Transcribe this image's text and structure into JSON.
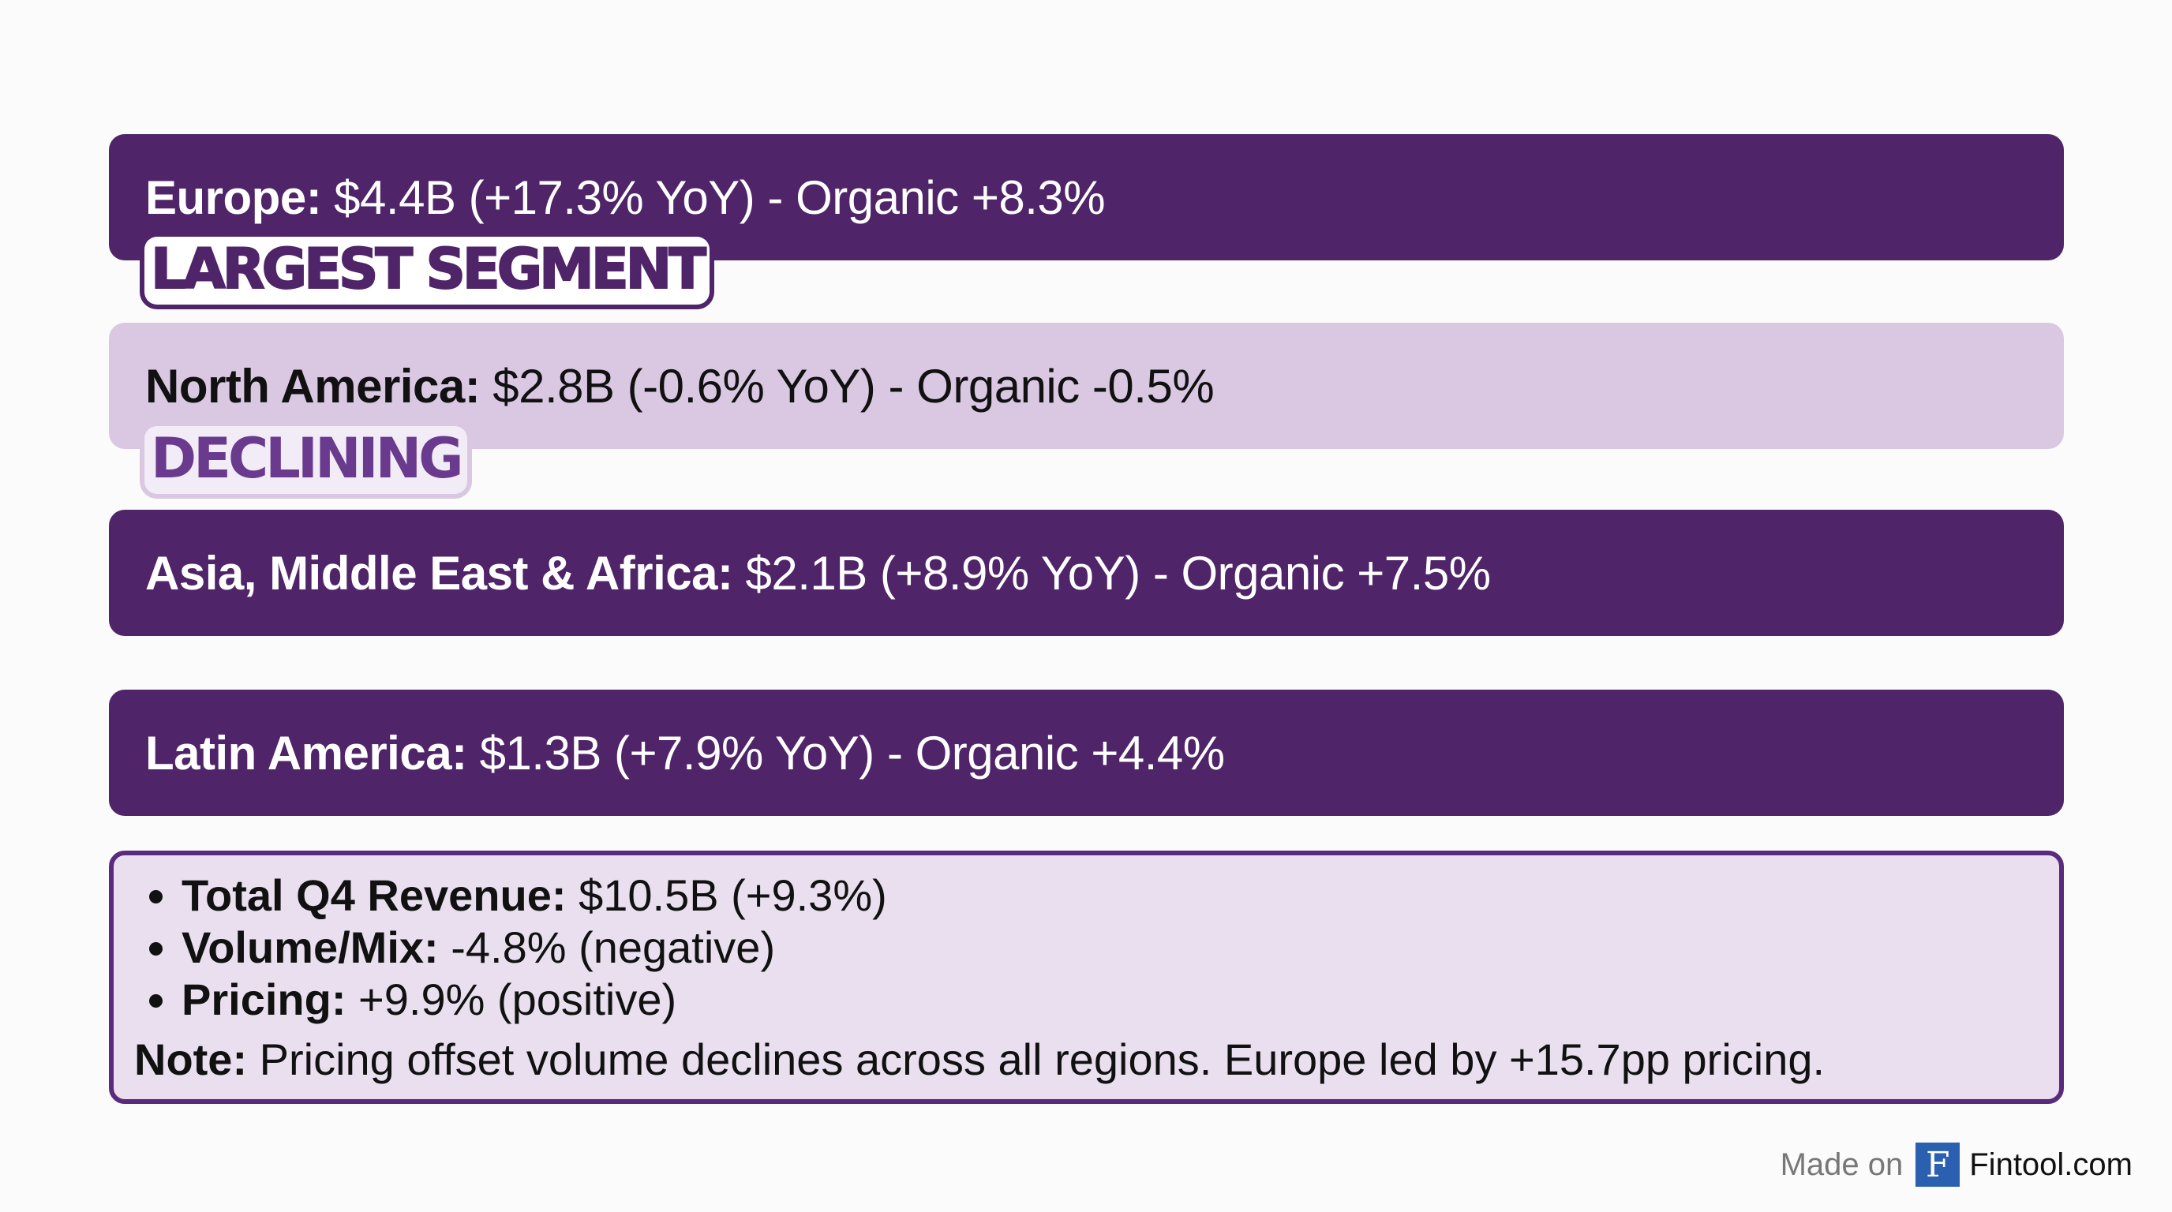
{
  "segments": [
    {
      "region": "Europe:",
      "detail": "$4.4B (+17.3% YoY) - Organic +8.3%",
      "badge": "LARGEST SEGMENT",
      "style": "dark"
    },
    {
      "region": "North America:",
      "detail": "$2.8B (-0.6% YoY) - Organic -0.5%",
      "badge": "DECLINING",
      "style": "light"
    },
    {
      "region": "Asia, Middle East & Africa:",
      "detail": "$2.1B (+8.9% YoY) - Organic +7.5%",
      "style": "dark"
    },
    {
      "region": "Latin America:",
      "detail": "$1.3B (+7.9% YoY) - Organic +4.4%",
      "style": "dark"
    }
  ],
  "summary": {
    "bullets": [
      {
        "label": "Total Q4 Revenue:",
        "value": "$10.5B (+9.3%)"
      },
      {
        "label": "Volume/Mix:",
        "value": "-4.8% (negative)"
      },
      {
        "label": "Pricing:",
        "value": "+9.9% (positive)"
      }
    ],
    "note_label": "Note:",
    "note_text": "Pricing offset volume declines across all regions. Europe led by +15.7pp pricing."
  },
  "footer": {
    "made_on": "Made on",
    "logo_letter": "F",
    "brand": "Fintool.com"
  },
  "colors": {
    "dark_purple": "#4f2468",
    "light_purple": "#dac8e3",
    "summary_bg": "#e9dfef",
    "logo_blue": "#2b5fb0"
  }
}
